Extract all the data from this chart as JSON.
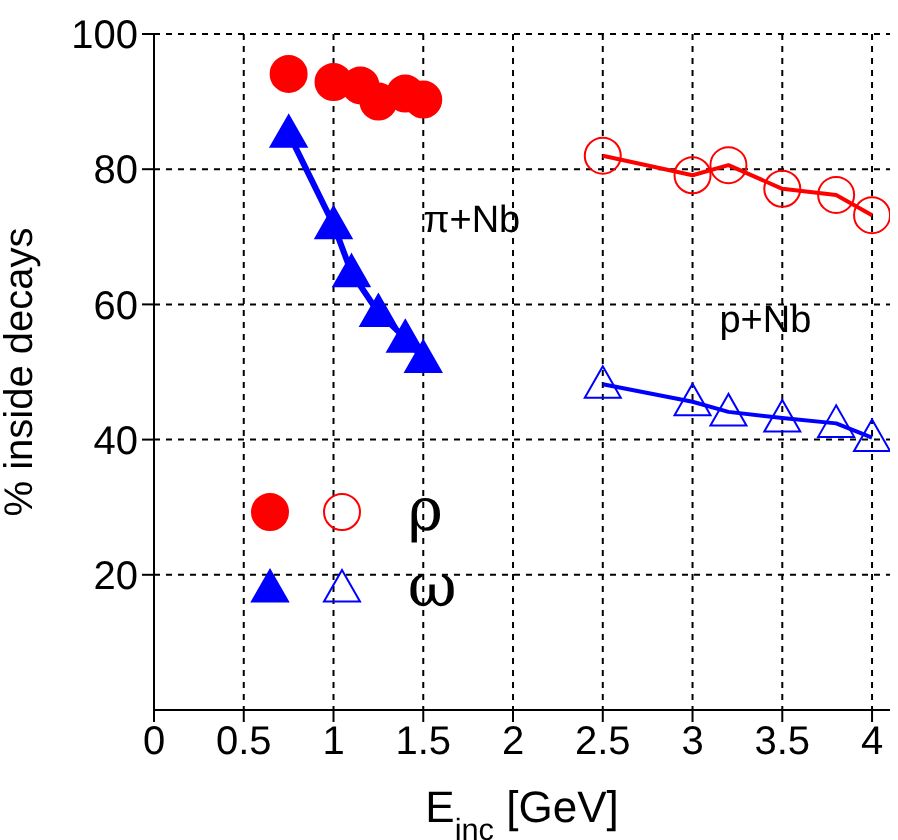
{
  "chart_data": {
    "type": "line",
    "xlabel": "E$_{inc}$ [GeV]",
    "ylabel": "% inside decays",
    "xlim": [
      0,
      4.1
    ],
    "xticks": [
      0,
      0.5,
      1,
      1.5,
      2,
      2.5,
      3,
      3.5,
      4
    ],
    "ylim": [
      0,
      100
    ],
    "yticks": [
      20,
      40,
      60,
      80,
      100
    ],
    "grid": true,
    "legend": "bottom left",
    "annotations": [
      "π+Nb",
      "p+Nb"
    ],
    "series": [
      {
        "name": "ρ",
        "type": "scatter",
        "color": "#ff0000",
        "marker": "circle",
        "x": [
          0.75,
          1.0,
          1.15,
          1.25,
          1.4,
          1.5
        ],
        "values": [
          94.1,
          92.9,
          92.4,
          90,
          91.2,
          90.3
        ]
      },
      {
        "name": "ω",
        "color": "#0000ff",
        "marker": "triangle",
        "x": [
          0.75,
          1.0,
          1.1,
          1.25,
          1.4,
          1.5
        ],
        "values": [
          85.3,
          71.8,
          64.7,
          58.8,
          55,
          52
        ]
      },
      {
        "color": "#ff0000",
        "marker": "circle",
        "x": [
          2.5,
          3.0,
          3.2,
          3.5,
          3.8,
          4.0
        ],
        "values": [
          82,
          79.1,
          80.6,
          77.1,
          76.2,
          73.2
        ]
      },
      {
        "color": "#0000ff",
        "marker": "triangle",
        "x": [
          2.5,
          3.0,
          3.2,
          3.5,
          3.8,
          4.0
        ],
        "values": [
          48.2,
          45.6,
          44.1,
          43.2,
          42.4,
          40.3
        ]
      }
    ]
  }
}
